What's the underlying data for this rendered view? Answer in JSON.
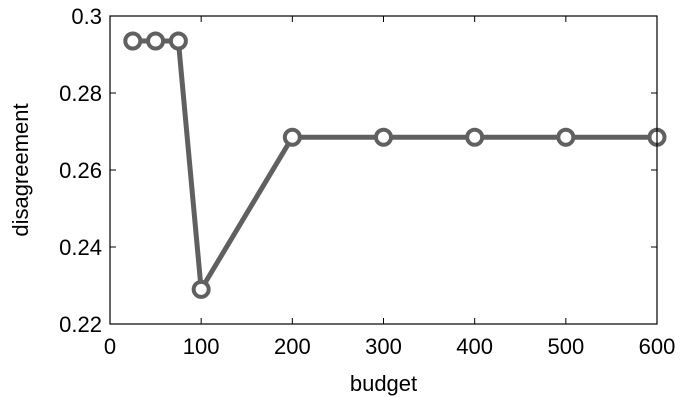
{
  "chart_data": {
    "type": "line",
    "title": "",
    "xlabel": "budget",
    "ylabel": "disagreement",
    "xlim": [
      0,
      600
    ],
    "ylim": [
      0.22,
      0.3
    ],
    "xticks": [
      0,
      100,
      200,
      300,
      400,
      500,
      600
    ],
    "yticks": [
      0.22,
      0.24,
      0.26,
      0.28,
      0.3
    ],
    "xtick_labels": [
      "0",
      "100",
      "200",
      "300",
      "400",
      "500",
      "600"
    ],
    "ytick_labels": [
      "0.22",
      "0.24",
      "0.26",
      "0.28",
      "0.3"
    ],
    "grid": false,
    "series": [
      {
        "color": "#606060",
        "marker": "circle",
        "x": [
          25,
          50,
          75,
          100,
          200,
          300,
          400,
          500,
          600
        ],
        "y": [
          0.2935,
          0.2935,
          0.2935,
          0.229,
          0.2685,
          0.2685,
          0.2685,
          0.2685,
          0.2685
        ]
      }
    ]
  }
}
